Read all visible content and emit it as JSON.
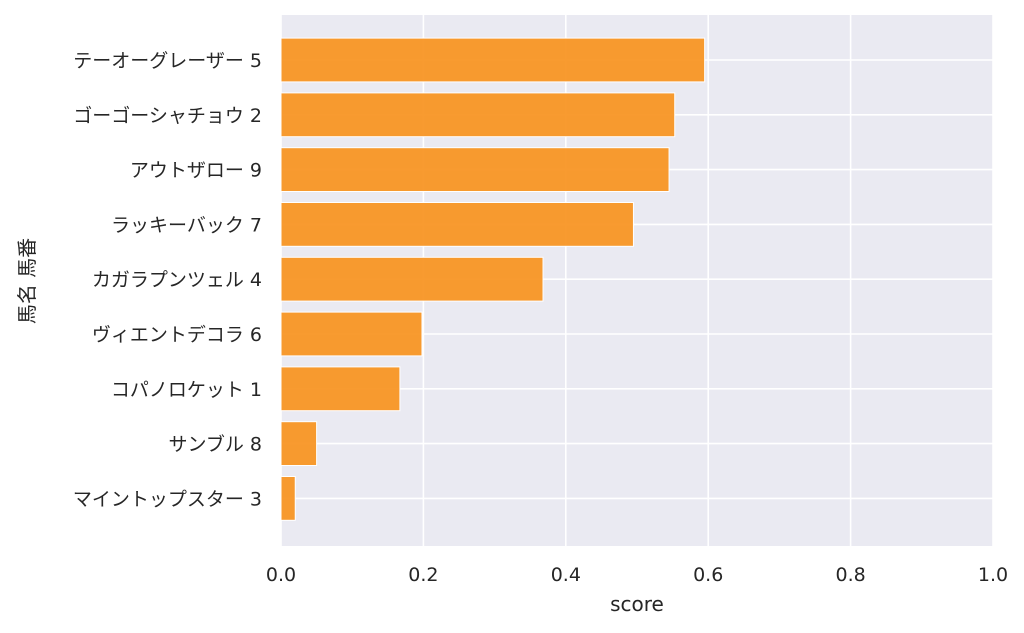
{
  "chart_data": {
    "type": "bar",
    "orientation": "horizontal",
    "xlabel": "score",
    "ylabel": "馬名 馬番",
    "xlim": [
      0.0,
      1.0
    ],
    "xticks": [
      "0.0",
      "0.2",
      "0.4",
      "0.6",
      "0.8",
      "1.0"
    ],
    "grid": true,
    "categories": [
      "テーオーグレーザー 5",
      "ゴーゴーシャチョウ 2",
      "アウトザロー 9",
      "ラッキーバック 7",
      "カガラプンツェル 4",
      "ヴィエントデコラ 6",
      "コパノロケット 1",
      "サンブル 8",
      "マイントップスター 3"
    ],
    "values": [
      0.595,
      0.553,
      0.545,
      0.495,
      0.368,
      0.198,
      0.167,
      0.05,
      0.02
    ],
    "colors": {
      "bar": "#f7931e",
      "plot_background": "#eaeaf2",
      "grid": "#ffffff"
    }
  }
}
